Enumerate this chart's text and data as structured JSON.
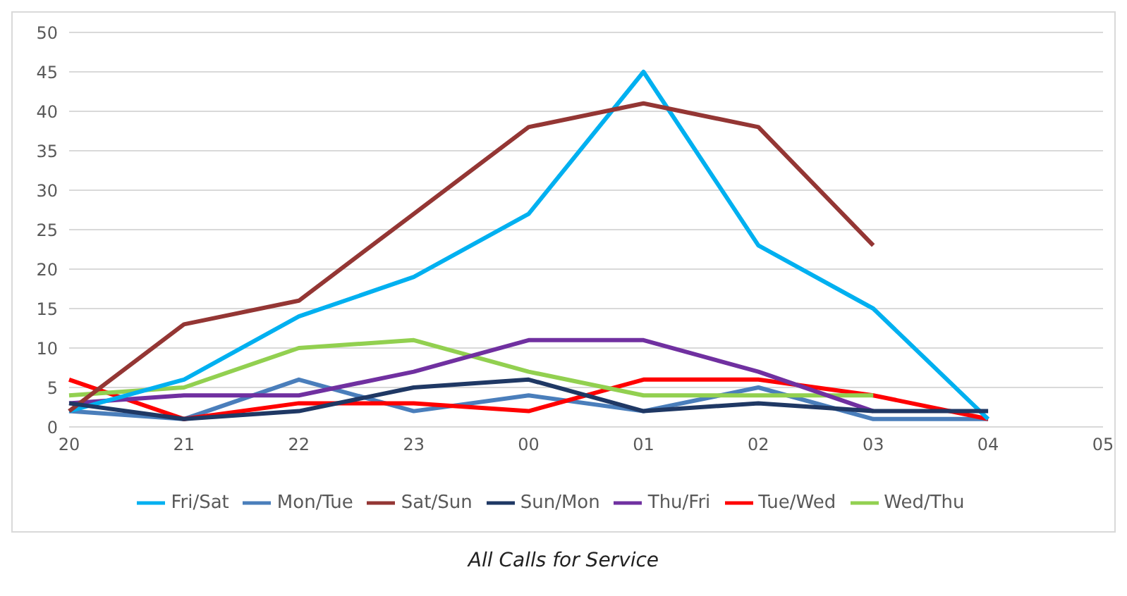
{
  "chart_data": {
    "type": "line",
    "categories": [
      "20",
      "21",
      "22",
      "23",
      "00",
      "01",
      "02",
      "03",
      "04",
      "05"
    ],
    "series": [
      {
        "name": "Mon/Tue",
        "color": "#4a7ebb",
        "values": [
          2,
          1,
          6,
          2,
          4,
          2,
          5,
          1,
          1,
          null
        ]
      },
      {
        "name": "Tue/Wed",
        "color": "#ff0000",
        "values": [
          6,
          1,
          3,
          3,
          2,
          6,
          6,
          4,
          1,
          null
        ]
      },
      {
        "name": "Wed/Thu",
        "color": "#92d050",
        "values": [
          4,
          5,
          10,
          11,
          7,
          4,
          4,
          4,
          null,
          null
        ]
      },
      {
        "name": "Thu/Fri",
        "color": "#7030a0",
        "values": [
          3,
          4,
          4,
          7,
          11,
          11,
          7,
          2,
          null,
          null
        ]
      },
      {
        "name": "Fri/Sat",
        "color": "#00b0f0",
        "values": [
          2,
          6,
          14,
          19,
          27,
          45,
          23,
          15,
          1,
          null
        ]
      },
      {
        "name": "Sat/Sun",
        "color": "#943634",
        "values": [
          2,
          13,
          16,
          27,
          38,
          41,
          38,
          23,
          null,
          null
        ]
      },
      {
        "name": "Sun/Mon",
        "color": "#1f3864",
        "values": [
          3,
          1,
          2,
          5,
          6,
          2,
          3,
          2,
          2,
          null
        ]
      }
    ],
    "ylim": [
      0,
      50
    ],
    "yticks": [
      0,
      5,
      10,
      15,
      20,
      25,
      30,
      35,
      40,
      45,
      50
    ],
    "grid": "y",
    "legend": "bottom",
    "marker": "none",
    "line_style": "solid",
    "annotations": [
      "All Calls for Service"
    ]
  }
}
